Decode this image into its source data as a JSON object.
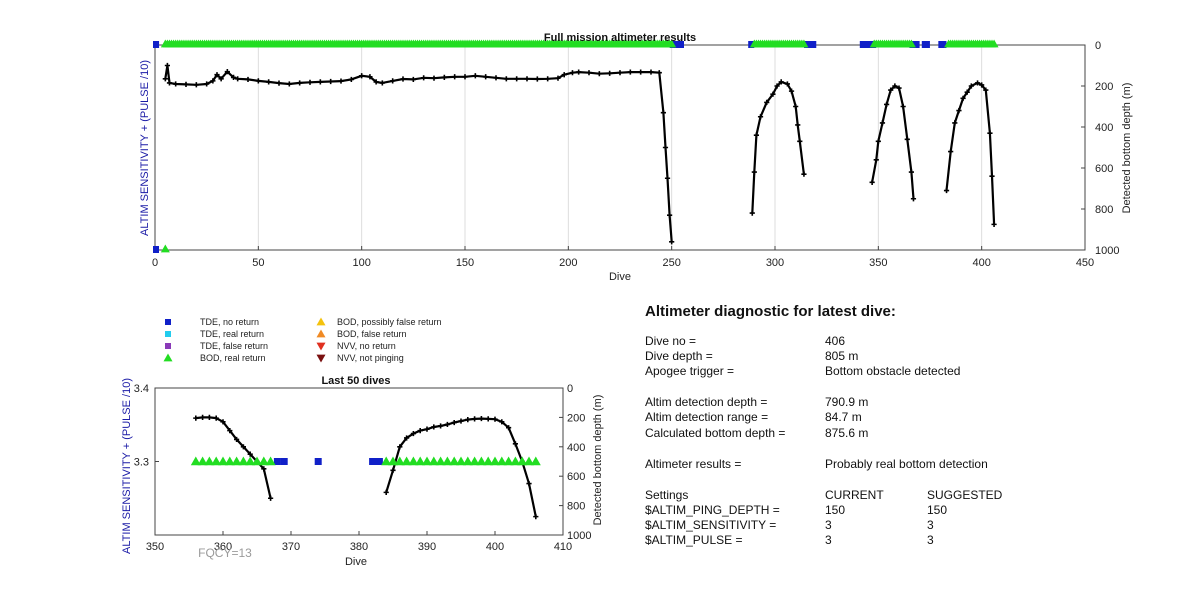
{
  "chart_data": [
    {
      "type": "line",
      "id": "full",
      "title": "Full mission altimeter results",
      "xlabel": "Dive",
      "ylabel_left": "ALTIM SENSITIVITY + (PULSE /10)",
      "ylabel_right": "Detected bottom depth (m)",
      "xlim": [
        0,
        450
      ],
      "xticks": [
        0,
        50,
        100,
        150,
        200,
        250,
        300,
        350,
        400,
        450
      ],
      "ylim_right": [
        0,
        1000
      ],
      "yticks_right": [
        0,
        200,
        400,
        600,
        800,
        1000
      ],
      "right_axis_reversed": true,
      "grid_x": true,
      "series": [
        {
          "name": "",
          "color": "#000000",
          "marker": "plus",
          "segments": [
            [
              [
                5,
                165
              ],
              [
                6,
                100
              ],
              [
                7,
                185
              ],
              [
                10,
                190
              ],
              [
                15,
                192
              ],
              [
                20,
                194
              ],
              [
                25,
                190
              ],
              [
                28,
                175
              ],
              [
                30,
                145
              ],
              [
                32,
                165
              ],
              [
                35,
                130
              ],
              [
                38,
                158
              ],
              [
                40,
                165
              ],
              [
                45,
                168
              ],
              [
                50,
                175
              ],
              [
                55,
                180
              ],
              [
                60,
                186
              ],
              [
                65,
                190
              ],
              [
                70,
                185
              ],
              [
                75,
                182
              ],
              [
                80,
                180
              ],
              [
                85,
                178
              ],
              [
                90,
                176
              ],
              [
                95,
                168
              ],
              [
                100,
                150
              ],
              [
                104,
                155
              ],
              [
                107,
                180
              ],
              [
                110,
                185
              ],
              [
                115,
                175
              ],
              [
                120,
                166
              ],
              [
                125,
                168
              ],
              [
                130,
                160
              ],
              [
                135,
                162
              ],
              [
                140,
                158
              ],
              [
                145,
                155
              ],
              [
                150,
                155
              ],
              [
                155,
                150
              ],
              [
                160,
                155
              ],
              [
                165,
                160
              ],
              [
                170,
                165
              ],
              [
                175,
                165
              ],
              [
                180,
                165
              ],
              [
                185,
                166
              ],
              [
                190,
                165
              ],
              [
                195,
                162
              ],
              [
                198,
                145
              ],
              [
                202,
                135
              ],
              [
                205,
                132
              ],
              [
                210,
                135
              ],
              [
                215,
                140
              ],
              [
                220,
                138
              ],
              [
                225,
                135
              ],
              [
                230,
                132
              ],
              [
                235,
                132
              ],
              [
                240,
                132
              ],
              [
                244,
                135
              ],
              [
                246,
                330
              ],
              [
                247,
                500
              ],
              [
                248,
                650
              ],
              [
                249,
                830
              ],
              [
                250,
                960
              ]
            ],
            [
              [
                289,
                820
              ],
              [
                290,
                620
              ],
              [
                291,
                440
              ],
              [
                293,
                350
              ],
              [
                296,
                280
              ],
              [
                299,
                240
              ],
              [
                301,
                200
              ],
              [
                303,
                180
              ],
              [
                306,
                190
              ],
              [
                308,
                225
              ],
              [
                310,
                300
              ],
              [
                311,
                390
              ],
              [
                312,
                470
              ],
              [
                314,
                630
              ]
            ],
            [
              [
                347,
                670
              ],
              [
                349,
                560
              ],
              [
                350,
                470
              ],
              [
                352,
                380
              ],
              [
                354,
                290
              ],
              [
                356,
                220
              ],
              [
                358,
                200
              ],
              [
                360,
                210
              ],
              [
                362,
                300
              ],
              [
                364,
                460
              ],
              [
                366,
                620
              ],
              [
                367,
                750
              ]
            ],
            [
              [
                383,
                710
              ],
              [
                385,
                520
              ],
              [
                387,
                380
              ],
              [
                389,
                320
              ],
              [
                391,
                260
              ],
              [
                393,
                230
              ],
              [
                395,
                200
              ],
              [
                398,
                185
              ],
              [
                400,
                195
              ],
              [
                402,
                220
              ],
              [
                404,
                430
              ],
              [
                405,
                640
              ],
              [
                406,
                875
              ]
            ]
          ]
        }
      ],
      "bars_no_return_color": "#1020c8",
      "bars_real_return_color": "#22dd22",
      "tde_no_return_ranges": [
        [
          0,
          1
        ],
        [
          250,
          255
        ],
        [
          288,
          289
        ],
        [
          315,
          319
        ],
        [
          342,
          348
        ],
        [
          366,
          369
        ],
        [
          372,
          374
        ],
        [
          380,
          382
        ]
      ],
      "bod_real_return_ranges": [
        [
          5,
          250
        ],
        [
          290,
          314
        ],
        [
          348,
          366
        ],
        [
          384,
          406
        ]
      ],
      "bottom_markers": [
        {
          "x": 0,
          "kind": "TDE, no return"
        },
        {
          "x": 5,
          "kind": "BOD, real return"
        }
      ]
    },
    {
      "type": "line",
      "id": "last50",
      "title": "Last 50 dives",
      "xlabel": "Dive",
      "ylabel_left": "ALTIM SENSITIVITY + (PULSE /10)",
      "ylabel_right": "Detected bottom depth (m)",
      "xlim": [
        350,
        410
      ],
      "xticks": [
        350,
        360,
        370,
        380,
        390,
        400,
        410
      ],
      "ylim_left": [
        3.2,
        3.4
      ],
      "yticks_left": [
        "3.4",
        "3.3"
      ],
      "yticks_left_values": [
        3.4,
        3.3
      ],
      "ylim_right": [
        0,
        1000
      ],
      "yticks_right": [
        0,
        200,
        400,
        600,
        800,
        1000
      ],
      "right_axis_reversed": true,
      "series": [
        {
          "name": "",
          "color": "#000000",
          "marker": "plus",
          "segments": [
            [
              [
                356,
                205
              ],
              [
                357,
                200
              ],
              [
                358,
                200
              ],
              [
                359,
                205
              ],
              [
                360,
                230
              ],
              [
                361,
                290
              ],
              [
                362,
                350
              ],
              [
                363,
                400
              ],
              [
                364,
                450
              ],
              [
                365,
                500
              ],
              [
                366,
                550
              ],
              [
                367,
                750
              ]
            ],
            [
              [
                384,
                710
              ],
              [
                385,
                560
              ],
              [
                386,
                400
              ],
              [
                387,
                340
              ],
              [
                388,
                310
              ],
              [
                389,
                290
              ],
              [
                390,
                280
              ],
              [
                391,
                265
              ],
              [
                392,
                258
              ],
              [
                393,
                248
              ],
              [
                394,
                235
              ],
              [
                395,
                225
              ],
              [
                396,
                215
              ],
              [
                397,
                210
              ],
              [
                398,
                208
              ],
              [
                399,
                210
              ],
              [
                400,
                212
              ],
              [
                401,
                230
              ],
              [
                402,
                270
              ],
              [
                403,
                380
              ],
              [
                404,
                500
              ],
              [
                405,
                650
              ],
              [
                406,
                875
              ]
            ]
          ]
        }
      ],
      "tde_no_return_points": [
        368,
        369,
        374,
        382,
        383
      ],
      "bod_real_return_points": [
        356,
        357,
        358,
        359,
        360,
        361,
        362,
        363,
        364,
        365,
        366,
        367,
        384,
        385,
        386,
        387,
        388,
        389,
        390,
        391,
        392,
        393,
        394,
        395,
        396,
        397,
        398,
        399,
        400,
        401,
        402,
        403,
        404,
        405,
        406
      ],
      "marker_y": 3.3,
      "annotation": "FQCY=13"
    }
  ],
  "legend": [
    {
      "label": "TDE, no return",
      "shape": "square",
      "color": "#1020c8"
    },
    {
      "label": "TDE, real return",
      "shape": "square",
      "color": "#22ccee"
    },
    {
      "label": "TDE, false return",
      "shape": "square",
      "color": "#8a3ab8"
    },
    {
      "label": "BOD, real return",
      "shape": "triangle-up",
      "color": "#22dd22"
    },
    {
      "label": "BOD, possibly false return",
      "shape": "triangle-up",
      "color": "#f4c20d"
    },
    {
      "label": "BOD, false return",
      "shape": "triangle-up",
      "color": "#f08a24"
    },
    {
      "label": "NVV, no return",
      "shape": "triangle-down",
      "color": "#e03020"
    },
    {
      "label": "NVV, not pinging",
      "shape": "triangle-down",
      "color": "#7a1010"
    }
  ],
  "diagnostic": {
    "heading": "Altimeter diagnostic for latest dive:",
    "rows": [
      {
        "label": "Dive no =",
        "value": "406"
      },
      {
        "label": "Dive depth =",
        "value": "805 m"
      },
      {
        "label": "Apogee trigger =",
        "value": "Bottom obstacle detected"
      },
      {
        "label": "Altim detection depth =",
        "value": "790.9 m"
      },
      {
        "label": "Altim detection range =",
        "value": "84.7 m"
      },
      {
        "label": "Calculated bottom depth =",
        "value": "875.6 m"
      },
      {
        "label": "Altimeter results =",
        "value": "Probably real bottom detection"
      }
    ],
    "settings_header": {
      "label": "Settings",
      "current": "CURRENT",
      "suggested": "SUGGESTED"
    },
    "settings": [
      {
        "label": "$ALTIM_PING_DEPTH =",
        "current": "150",
        "suggested": "150"
      },
      {
        "label": "$ALTIM_SENSITIVITY =",
        "current": "3",
        "suggested": "3"
      },
      {
        "label": "$ALTIM_PULSE =",
        "current": "3",
        "suggested": "3"
      }
    ]
  }
}
